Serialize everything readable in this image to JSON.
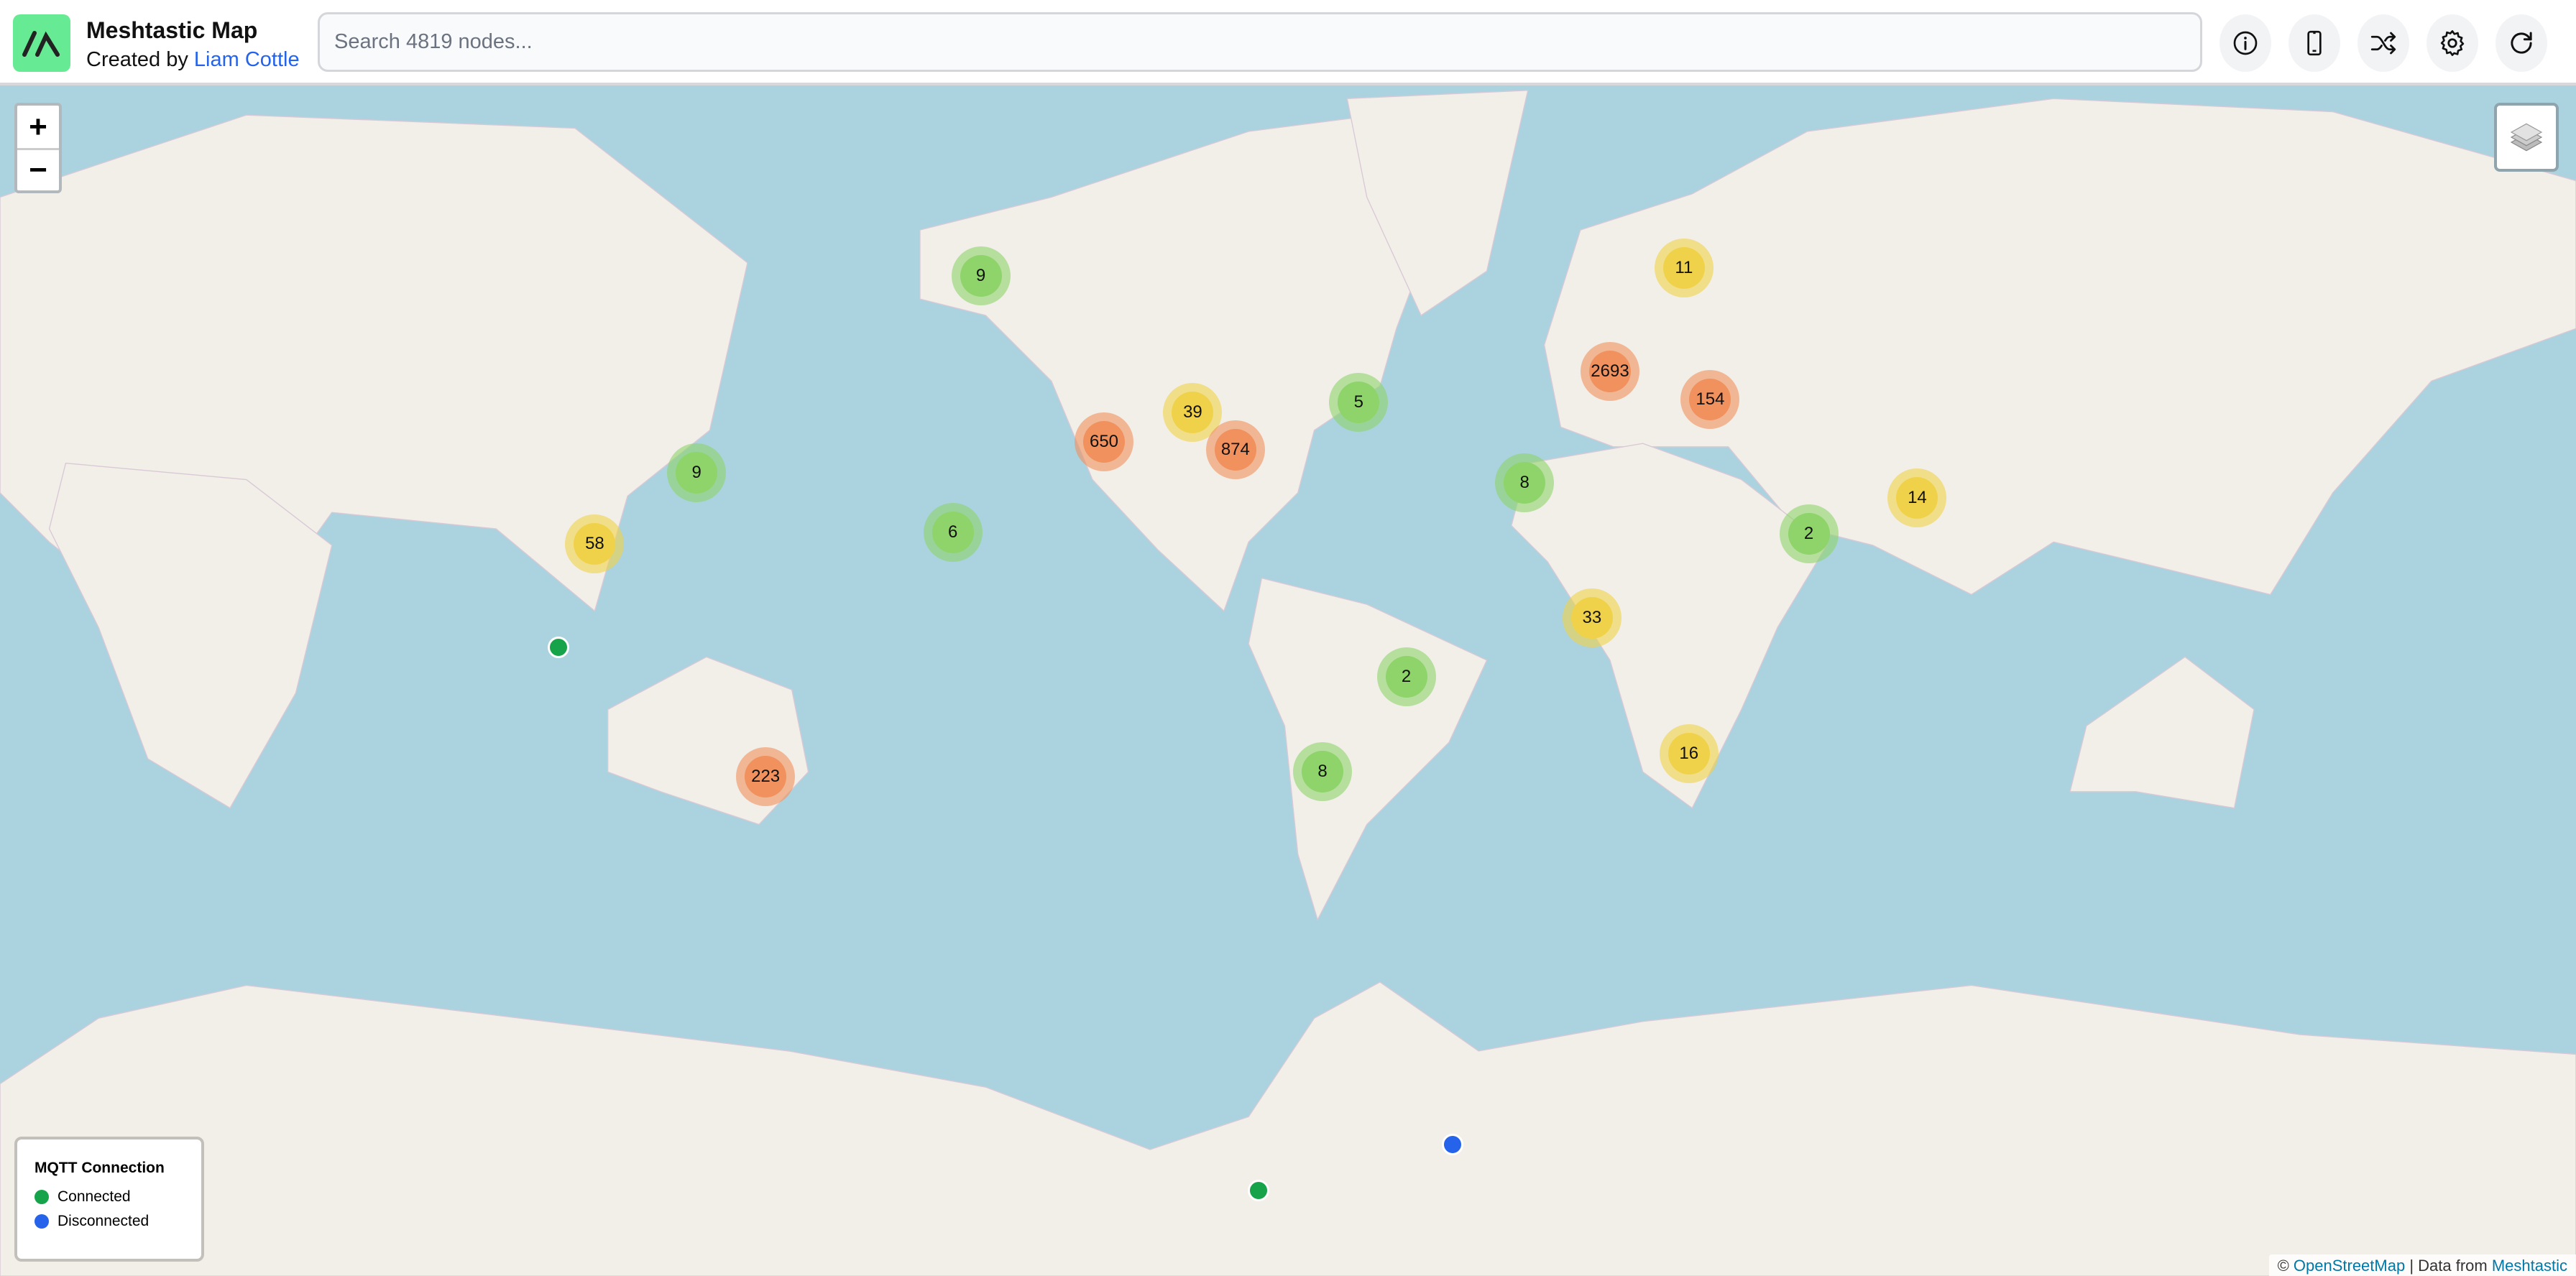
{
  "header": {
    "title": "Meshtastic Map",
    "subtitle_prefix": "Created by ",
    "author": "Liam Cottle",
    "search_placeholder": "Search 4819 nodes...",
    "buttons": [
      {
        "icon": "info-icon"
      },
      {
        "icon": "phone-icon"
      },
      {
        "icon": "shuffle-icon"
      },
      {
        "icon": "gear-icon"
      },
      {
        "icon": "refresh-icon"
      }
    ]
  },
  "map": {
    "zoom_in": "+",
    "zoom_out": "−",
    "colors": {
      "ocean": "#aad3df",
      "land": "#f2efe9",
      "small": "#8ed46a",
      "medium": "#f0d24a",
      "large": "#f0915e"
    },
    "clusters": [
      {
        "count": "9",
        "tier": "small"
      },
      {
        "count": "9",
        "tier": "small"
      },
      {
        "count": "58",
        "tier": "medium"
      },
      {
        "count": "6",
        "tier": "small"
      },
      {
        "count": "650",
        "tier": "large"
      },
      {
        "count": "39",
        "tier": "medium"
      },
      {
        "count": "874",
        "tier": "large"
      },
      {
        "count": "5",
        "tier": "small"
      },
      {
        "count": "11",
        "tier": "medium"
      },
      {
        "count": "2693",
        "tier": "large"
      },
      {
        "count": "154",
        "tier": "large"
      },
      {
        "count": "8",
        "tier": "small"
      },
      {
        "count": "2",
        "tier": "small"
      },
      {
        "count": "14",
        "tier": "medium"
      },
      {
        "count": "33",
        "tier": "medium"
      },
      {
        "count": "2",
        "tier": "small"
      },
      {
        "count": "8",
        "tier": "small"
      },
      {
        "count": "16",
        "tier": "medium"
      },
      {
        "count": "223",
        "tier": "large"
      }
    ],
    "nodes": [
      {
        "status": "connected"
      },
      {
        "status": "connected"
      },
      {
        "status": "disconnected"
      }
    ]
  },
  "legend": {
    "title": "MQTT Connection",
    "items": [
      {
        "label": "Connected",
        "color": "#16a34a"
      },
      {
        "label": "Disconnected",
        "color": "#2563eb"
      }
    ]
  },
  "attribution": {
    "prefix": "© ",
    "osm": "OpenStreetMap",
    "middle": " | Data from ",
    "meshtastic": "Meshtastic"
  }
}
